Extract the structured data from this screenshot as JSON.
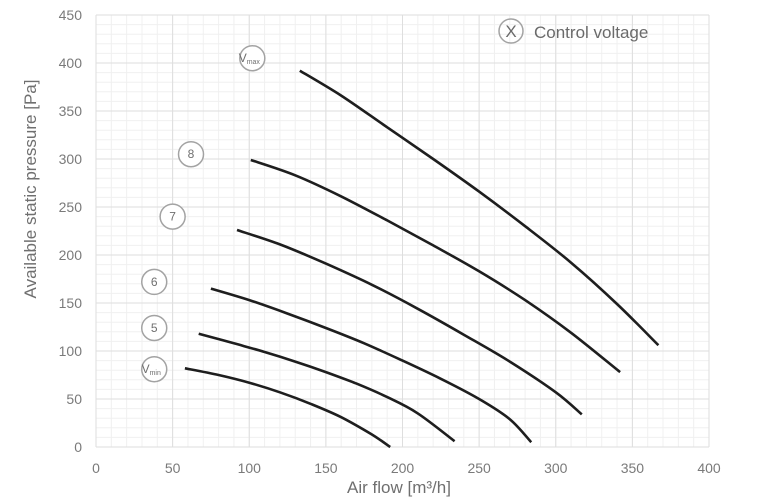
{
  "chart_data": {
    "type": "line",
    "title": "",
    "xlabel": "Air flow [m³/h]",
    "ylabel": "Available static pressure [Pa]",
    "xlim": [
      0,
      400
    ],
    "ylim": [
      0,
      450
    ],
    "x_ticks": [
      0,
      50,
      100,
      150,
      200,
      250,
      300,
      350,
      400
    ],
    "y_ticks": [
      0,
      50,
      100,
      150,
      200,
      250,
      300,
      350,
      400,
      450
    ],
    "x_tick_labels": [
      "0",
      "50",
      "100",
      "150",
      "200",
      "250",
      "300",
      "350",
      "400"
    ],
    "y_tick_labels": [
      "0",
      "50",
      "100",
      "150",
      "200",
      "250",
      "300",
      "350",
      "400",
      "450"
    ],
    "grid": true,
    "legend": {
      "symbol": "X",
      "text": "Control voltage",
      "placement": "top-right"
    },
    "series": [
      {
        "name": "Vmin",
        "label_main": "V",
        "label_sub": "min",
        "label_at": [
          38,
          81
        ],
        "x": [
          58,
          80,
          100,
          120,
          140,
          160,
          180,
          192
        ],
        "y": [
          82,
          75,
          67,
          57,
          45,
          31,
          13,
          0
        ]
      },
      {
        "name": "5",
        "label_main": "5",
        "label_sub": "",
        "label_at": [
          38,
          124
        ],
        "x": [
          67,
          90,
          110,
          130,
          150,
          170,
          190,
          210,
          234
        ],
        "y": [
          118,
          108,
          99,
          89,
          78,
          66,
          52,
          35,
          6
        ]
      },
      {
        "name": "6",
        "label_main": "6",
        "label_sub": "",
        "label_at": [
          38,
          172
        ],
        "x": [
          75,
          100,
          125,
          150,
          175,
          200,
          225,
          250,
          270,
          284
        ],
        "y": [
          165,
          153,
          139,
          124,
          108,
          90,
          71,
          50,
          29,
          5
        ]
      },
      {
        "name": "7",
        "label_main": "7",
        "label_sub": "",
        "label_at": [
          50,
          240
        ],
        "x": [
          92,
          120,
          150,
          180,
          210,
          240,
          270,
          300,
          317
        ],
        "y": [
          226,
          211,
          191,
          169,
          144,
          117,
          89,
          57,
          34
        ]
      },
      {
        "name": "8",
        "label_main": "8",
        "label_sub": "",
        "label_at": [
          62,
          305
        ],
        "x": [
          101,
          130,
          160,
          190,
          220,
          250,
          280,
          310,
          342
        ],
        "y": [
          299,
          283,
          261,
          236,
          210,
          183,
          153,
          119,
          78
        ]
      },
      {
        "name": "Vmax",
        "label_main": "V",
        "label_sub": "max",
        "label_at": [
          102,
          405
        ],
        "x": [
          133,
          160,
          190,
          220,
          250,
          280,
          310,
          340,
          367
        ],
        "y": [
          392,
          366,
          333,
          300,
          266,
          230,
          192,
          149,
          106
        ]
      }
    ]
  }
}
